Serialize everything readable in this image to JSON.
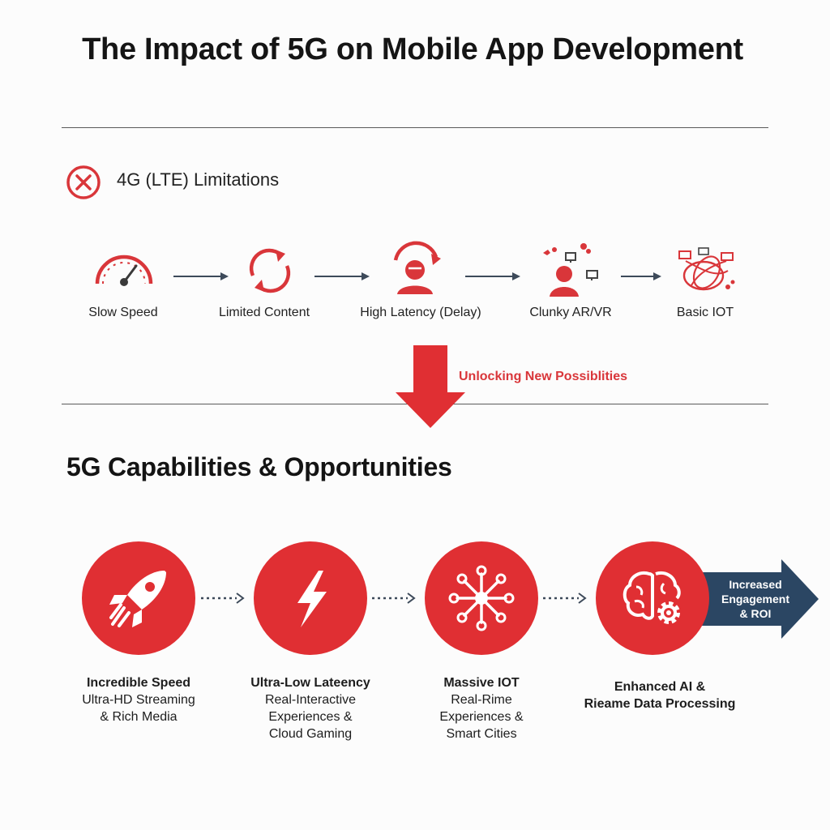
{
  "title": "The Impact of 5G on Mobile App Development",
  "limitations": {
    "title": "4G (LTE) Limitations",
    "items": [
      {
        "label": "Slow Speed",
        "icon": "speedometer-icon"
      },
      {
        "label": "Limited Content",
        "icon": "refresh-cycle-icon"
      },
      {
        "label": "High Latency (Delay)",
        "icon": "person-delay-icon"
      },
      {
        "label": "Clunky AR/VR",
        "icon": "person-devices-icon"
      },
      {
        "label": "Basic IOT",
        "icon": "tangled-network-icon"
      }
    ]
  },
  "transition": {
    "label": "Unlocking New Possiblities"
  },
  "capabilities": {
    "title": "5G Capabilities & Opportunities",
    "items": [
      {
        "heading": "Incredible Speed",
        "lines": [
          "Ultra-HD Streaming",
          "& Rich Media"
        ],
        "icon": "rocket-icon"
      },
      {
        "heading": "Ultra-Low Lateency",
        "lines": [
          "Real-Interactive",
          "Experiences &",
          "Cloud Gaming"
        ],
        "icon": "lightning-icon"
      },
      {
        "heading": "Massive IOT",
        "lines": [
          "Real-Rime",
          "Experiences &",
          "Smart Cities"
        ],
        "icon": "network-hub-icon"
      },
      {
        "heading": "Enhanced AI &",
        "lines": [
          "Rieame Data Processing"
        ],
        "icon": "brain-gear-icon"
      }
    ],
    "outcome": {
      "lines": [
        "Increased",
        "Engagement",
        "& ROI"
      ]
    }
  },
  "colors": {
    "accent": "#e02f33",
    "outcome_arrow": "#2b4663",
    "text": "#111111",
    "rule": "#5a5a5a"
  }
}
